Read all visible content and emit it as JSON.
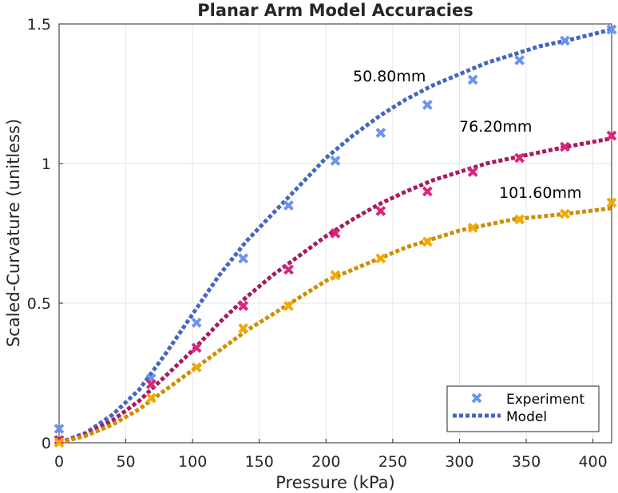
{
  "chart_data": {
    "type": "line",
    "title": "Planar Arm Model Accuracies",
    "xlabel": "Pressure (kPa)",
    "ylabel": "Scaled-Curvature (unitless)",
    "xlim": [
      0,
      414
    ],
    "ylim": [
      0,
      1.5
    ],
    "xticks": [
      0,
      50,
      100,
      150,
      200,
      250,
      300,
      350,
      400
    ],
    "yticks": [
      0,
      0.5,
      1,
      1.5
    ],
    "ytick_labels": [
      "0",
      "0.5",
      "1",
      "1.5"
    ],
    "grid": true,
    "legend": {
      "placement": "bottom-right",
      "entries": [
        "Experiment",
        "Model"
      ]
    },
    "series": [
      {
        "label": "50.80mm",
        "model_color": "#4466c0",
        "marker_color": "#6b93f0",
        "experiment": {
          "x": [
            0,
            69,
            103,
            138,
            172,
            207,
            241,
            276,
            310,
            345,
            379,
            414
          ],
          "y": [
            0.05,
            0.23,
            0.43,
            0.66,
            0.85,
            1.01,
            1.11,
            1.21,
            1.3,
            1.37,
            1.44,
            1.48
          ]
        },
        "model": {
          "x": [
            0,
            20,
            40,
            60,
            80,
            100,
            120,
            140,
            160,
            180,
            200,
            220,
            240,
            260,
            280,
            300,
            320,
            340,
            360,
            380,
            414
          ],
          "y": [
            0,
            0.035,
            0.1,
            0.19,
            0.32,
            0.46,
            0.6,
            0.72,
            0.82,
            0.92,
            1.02,
            1.1,
            1.17,
            1.23,
            1.28,
            1.32,
            1.36,
            1.39,
            1.42,
            1.44,
            1.48
          ]
        }
      },
      {
        "label": "76.20mm",
        "model_color": "#a8195e",
        "marker_color": "#d8267c",
        "experiment": {
          "x": [
            0,
            69,
            103,
            138,
            172,
            207,
            241,
            276,
            310,
            345,
            379,
            414
          ],
          "y": [
            0.01,
            0.21,
            0.34,
            0.49,
            0.62,
            0.75,
            0.83,
            0.9,
            0.97,
            1.02,
            1.06,
            1.1
          ]
        },
        "model": {
          "x": [
            0,
            20,
            40,
            60,
            80,
            100,
            120,
            140,
            160,
            180,
            200,
            220,
            240,
            260,
            280,
            300,
            320,
            340,
            360,
            380,
            414
          ],
          "y": [
            0,
            0.03,
            0.08,
            0.15,
            0.24,
            0.33,
            0.43,
            0.52,
            0.6,
            0.67,
            0.74,
            0.8,
            0.855,
            0.9,
            0.94,
            0.97,
            1.0,
            1.02,
            1.04,
            1.06,
            1.09
          ]
        }
      },
      {
        "label": "101.60mm",
        "model_color": "#cc8f00",
        "marker_color": "#f2a900",
        "experiment": {
          "x": [
            0,
            69,
            103,
            138,
            172,
            207,
            241,
            276,
            310,
            345,
            379,
            414
          ],
          "y": [
            0.0,
            0.16,
            0.27,
            0.41,
            0.49,
            0.6,
            0.66,
            0.72,
            0.77,
            0.8,
            0.82,
            0.86
          ]
        },
        "model": {
          "x": [
            0,
            20,
            40,
            60,
            80,
            100,
            120,
            140,
            160,
            180,
            200,
            220,
            240,
            260,
            280,
            300,
            320,
            340,
            360,
            380,
            414
          ],
          "y": [
            0,
            0.025,
            0.065,
            0.12,
            0.19,
            0.26,
            0.33,
            0.4,
            0.46,
            0.52,
            0.58,
            0.62,
            0.66,
            0.7,
            0.73,
            0.76,
            0.78,
            0.8,
            0.81,
            0.82,
            0.84
          ]
        }
      }
    ],
    "legend_colors": {
      "experiment": "#6b93f0",
      "model": "#4466c0"
    }
  }
}
